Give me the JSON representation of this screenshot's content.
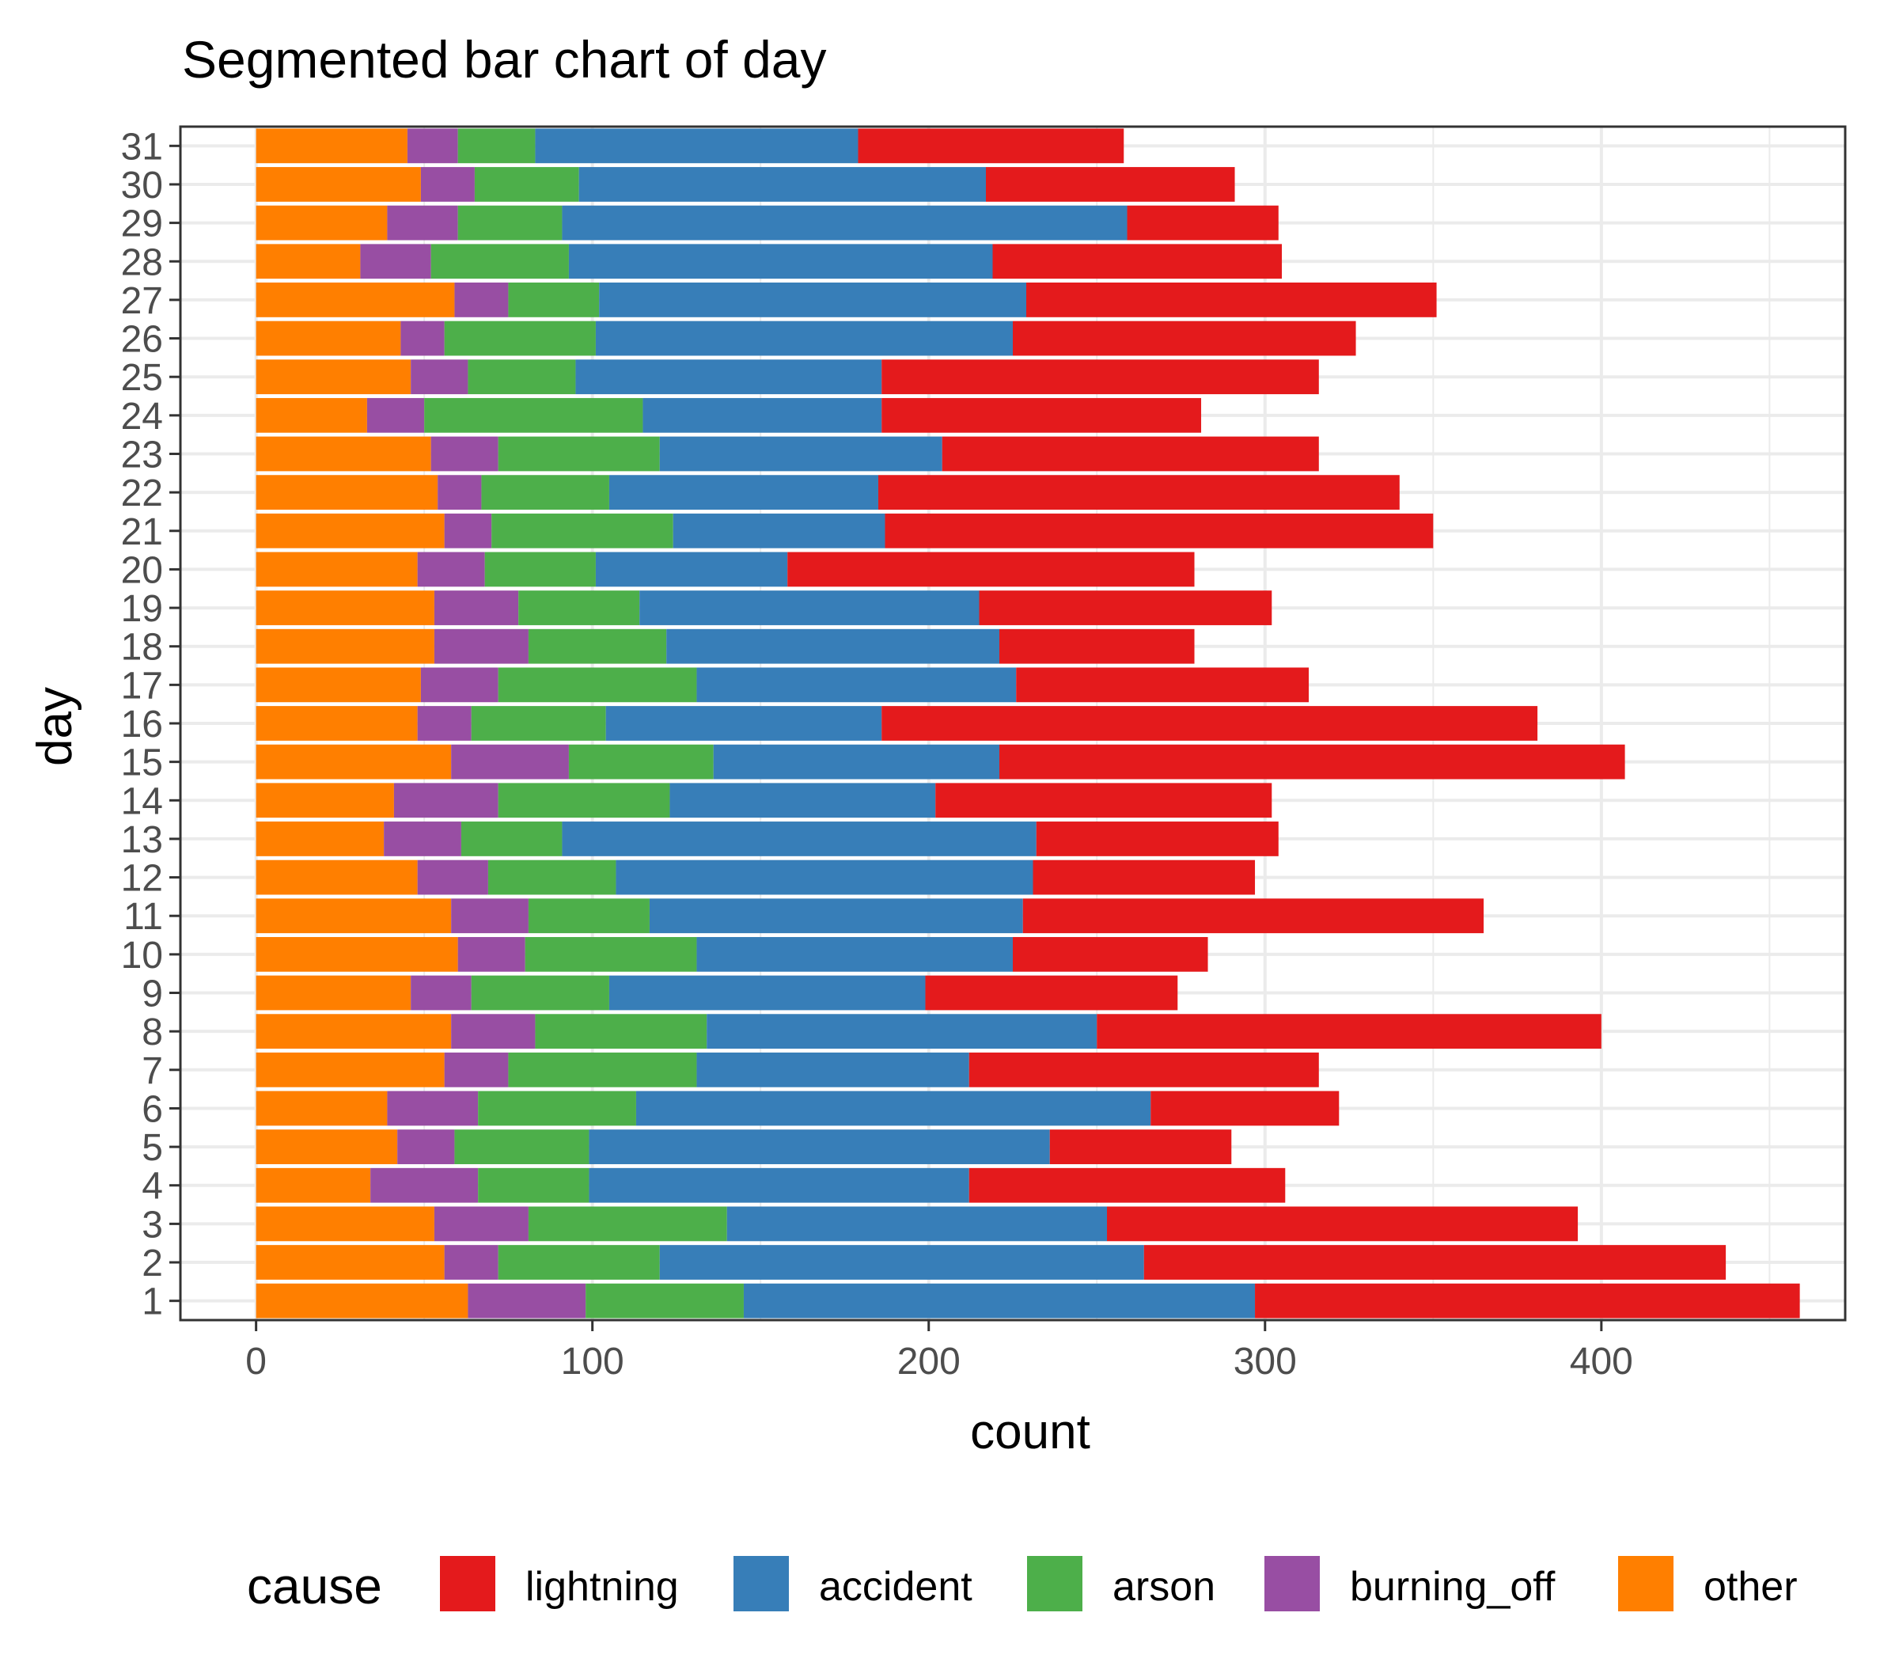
{
  "chart_data": {
    "type": "bar",
    "orientation": "horizontal",
    "stacked": true,
    "title": "Segmented bar chart of day",
    "xlabel": "count",
    "ylabel": "day",
    "xlim": [
      -22.5,
      472.5
    ],
    "xticks": [
      0,
      100,
      200,
      300,
      400
    ],
    "grid": true,
    "legend": {
      "title": "cause",
      "position": "bottom"
    },
    "categories": [
      "1",
      "2",
      "3",
      "4",
      "5",
      "6",
      "7",
      "8",
      "9",
      "10",
      "11",
      "12",
      "13",
      "14",
      "15",
      "16",
      "17",
      "18",
      "19",
      "20",
      "21",
      "22",
      "23",
      "24",
      "25",
      "26",
      "27",
      "28",
      "29",
      "30",
      "31"
    ],
    "series": [
      {
        "name": "other",
        "color": "#FF7F00",
        "values": [
          63,
          56,
          53,
          34,
          42,
          39,
          56,
          58,
          46,
          60,
          58,
          48,
          38,
          41,
          58,
          48,
          49,
          53,
          53,
          48,
          56,
          54,
          52,
          33,
          46,
          43,
          59,
          31,
          39,
          49,
          45
        ]
      },
      {
        "name": "burning_off",
        "color": "#984EA3",
        "values": [
          35,
          16,
          28,
          32,
          17,
          27,
          19,
          25,
          18,
          20,
          23,
          21,
          23,
          31,
          35,
          16,
          23,
          28,
          25,
          20,
          14,
          13,
          20,
          17,
          17,
          13,
          16,
          21,
          21,
          16,
          15
        ]
      },
      {
        "name": "arson",
        "color": "#4DAF4A",
        "values": [
          47,
          48,
          59,
          33,
          40,
          47,
          56,
          51,
          41,
          51,
          36,
          38,
          30,
          51,
          43,
          40,
          59,
          41,
          36,
          33,
          54,
          38,
          48,
          65,
          32,
          45,
          27,
          41,
          31,
          31,
          23
        ]
      },
      {
        "name": "accident",
        "color": "#377EB8",
        "values": [
          152,
          144,
          113,
          113,
          137,
          153,
          81,
          116,
          94,
          94,
          111,
          124,
          141,
          79,
          85,
          82,
          95,
          99,
          101,
          57,
          63,
          80,
          84,
          71,
          91,
          124,
          127,
          126,
          168,
          121,
          96
        ]
      },
      {
        "name": "lightning",
        "color": "#E41A1C",
        "values": [
          162,
          173,
          140,
          94,
          54,
          56,
          104,
          150,
          75,
          58,
          137,
          66,
          72,
          100,
          186,
          195,
          87,
          58,
          87,
          121,
          163,
          155,
          112,
          95,
          130,
          102,
          122,
          86,
          45,
          74,
          79
        ]
      }
    ],
    "legend_order": [
      "lightning",
      "accident",
      "arson",
      "burning_off",
      "other"
    ]
  }
}
